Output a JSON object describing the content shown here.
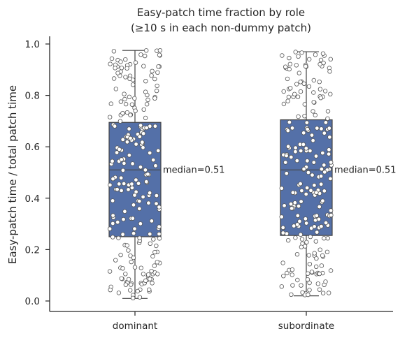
{
  "chart_data": {
    "type": "box",
    "title_line1": "Easy-patch time fraction by role",
    "title_line2": "(≥10 s in each non-dummy patch)",
    "xlabel": "",
    "ylabel": "Easy-patch time / total patch time",
    "ylim": [
      -0.04,
      1.025
    ],
    "yticks": [
      "0.0",
      "0.2",
      "0.4",
      "0.6",
      "0.8",
      "1.0"
    ],
    "categories": [
      "dominant",
      "subordinate"
    ],
    "box_color": "#5470a8",
    "point_fill": "#ffffff",
    "point_stroke": "#555555",
    "boxes": [
      {
        "category": "dominant",
        "q1": 0.25,
        "median": 0.51,
        "q3": 0.695,
        "whisker_low": 0.01,
        "whisker_high": 0.975,
        "median_label": "median=0.51"
      },
      {
        "category": "subordinate",
        "q1": 0.255,
        "median": 0.51,
        "q3": 0.705,
        "whisker_low": 0.02,
        "whisker_high": 0.97,
        "median_label": "median=0.51"
      }
    ],
    "points_per_group": 230,
    "grid": false,
    "legend": "none"
  }
}
